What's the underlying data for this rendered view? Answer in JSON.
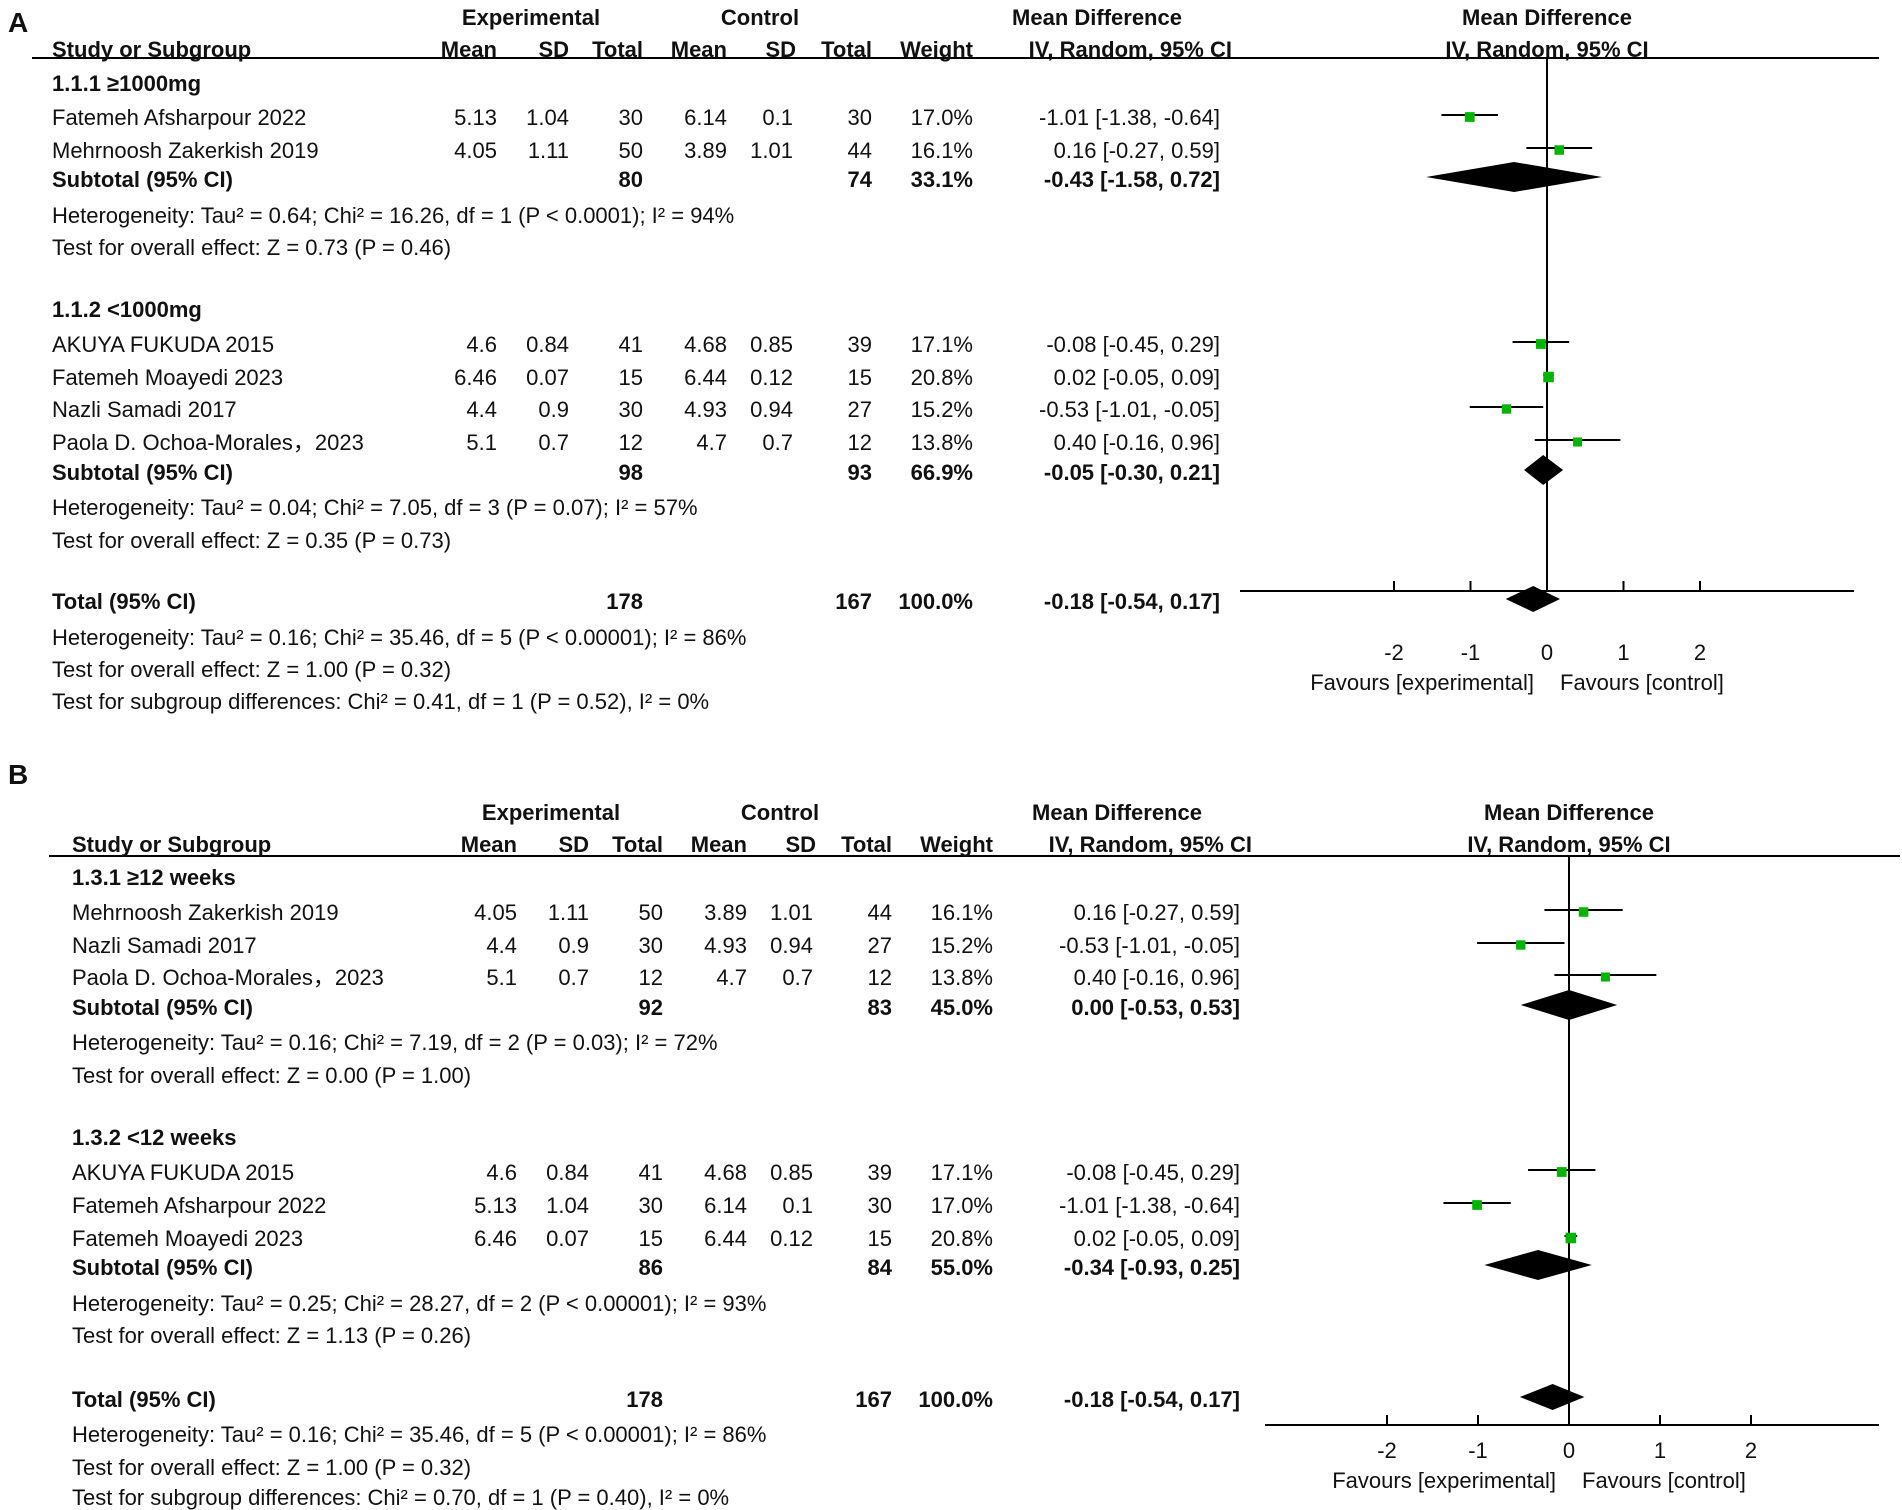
{
  "chart_data": [
    {
      "type": "forest",
      "panel_label": "A",
      "header": {
        "group_exp": "Experimental",
        "group_ctl": "Control",
        "group_md": "Mean Difference",
        "study": "Study or Subgroup",
        "mean": "Mean",
        "sd": "SD",
        "total": "Total",
        "weight": "Weight",
        "method": "IV, Random, 95% CI",
        "plot_title": "Mean Difference",
        "plot_method": "IV, Random, 95% CI"
      },
      "rows": [
        {
          "type": "subgroup",
          "text": "1.1.1 ≥1000mg"
        },
        {
          "type": "study",
          "name": "Fatemeh Afsharpour 2022",
          "exp_mean": "5.13",
          "exp_sd": "1.04",
          "exp_total": "30",
          "ctl_mean": "6.14",
          "ctl_sd": "0.1",
          "ctl_total": "30",
          "weight": "17.0%",
          "ci_text": "-1.01 [-1.38, -0.64]",
          "md": -1.01,
          "lo": -1.38,
          "hi": -0.64
        },
        {
          "type": "study",
          "name": "Mehrnoosh Zakerkish 2019",
          "exp_mean": "4.05",
          "exp_sd": "1.11",
          "exp_total": "50",
          "ctl_mean": "3.89",
          "ctl_sd": "1.01",
          "ctl_total": "44",
          "weight": "16.1%",
          "ci_text": "0.16 [-0.27, 0.59]",
          "md": 0.16,
          "lo": -0.27,
          "hi": 0.59
        },
        {
          "type": "subtotal",
          "name": "Subtotal (95% CI)",
          "exp_total": "80",
          "ctl_total": "74",
          "weight": "33.1%",
          "ci_text": "-0.43 [-1.58, 0.72]",
          "md": -0.43,
          "lo": -1.58,
          "hi": 0.72
        },
        {
          "type": "note",
          "text": "Heterogeneity: Tau² = 0.64; Chi² = 16.26, df = 1 (P < 0.0001); I² = 94%"
        },
        {
          "type": "note",
          "text": "Test for overall effect: Z = 0.73 (P = 0.46)"
        },
        {
          "type": "subgroup",
          "text": "1.1.2 <1000mg"
        },
        {
          "type": "study",
          "name": "AKUYA FUKUDA 2015",
          "exp_mean": "4.6",
          "exp_sd": "0.84",
          "exp_total": "41",
          "ctl_mean": "4.68",
          "ctl_sd": "0.85",
          "ctl_total": "39",
          "weight": "17.1%",
          "ci_text": "-0.08 [-0.45, 0.29]",
          "md": -0.08,
          "lo": -0.45,
          "hi": 0.29
        },
        {
          "type": "study",
          "name": "Fatemeh Moayedi 2023",
          "exp_mean": "6.46",
          "exp_sd": "0.07",
          "exp_total": "15",
          "ctl_mean": "6.44",
          "ctl_sd": "0.12",
          "ctl_total": "15",
          "weight": "20.8%",
          "ci_text": "0.02 [-0.05, 0.09]",
          "md": 0.02,
          "lo": -0.05,
          "hi": 0.09
        },
        {
          "type": "study",
          "name": "Nazli Samadi 2017",
          "exp_mean": "4.4",
          "exp_sd": "0.9",
          "exp_total": "30",
          "ctl_mean": "4.93",
          "ctl_sd": "0.94",
          "ctl_total": "27",
          "weight": "15.2%",
          "ci_text": "-0.53 [-1.01, -0.05]",
          "md": -0.53,
          "lo": -1.01,
          "hi": -0.05
        },
        {
          "type": "study",
          "name": "Paola D. Ochoa-Morales，2023",
          "exp_mean": "5.1",
          "exp_sd": "0.7",
          "exp_total": "12",
          "ctl_mean": "4.7",
          "ctl_sd": "0.7",
          "ctl_total": "12",
          "weight": "13.8%",
          "ci_text": "0.40 [-0.16, 0.96]",
          "md": 0.4,
          "lo": -0.16,
          "hi": 0.96
        },
        {
          "type": "subtotal",
          "name": "Subtotal (95% CI)",
          "exp_total": "98",
          "ctl_total": "93",
          "weight": "66.9%",
          "ci_text": "-0.05 [-0.30, 0.21]",
          "md": -0.05,
          "lo": -0.3,
          "hi": 0.21
        },
        {
          "type": "note",
          "text": "Heterogeneity: Tau² = 0.04; Chi² = 7.05, df = 3 (P = 0.07); I² = 57%"
        },
        {
          "type": "note",
          "text": "Test for overall effect: Z = 0.35 (P = 0.73)"
        },
        {
          "type": "subtotal",
          "name": "Total (95% CI)",
          "exp_total": "178",
          "ctl_total": "167",
          "weight": "100.0%",
          "ci_text": "-0.18 [-0.54, 0.17]",
          "md": -0.18,
          "lo": -0.54,
          "hi": 0.17
        },
        {
          "type": "note",
          "text": "Heterogeneity: Tau² = 0.16; Chi² = 35.46, df = 5 (P < 0.00001); I² = 86%"
        },
        {
          "type": "note",
          "text": "Test for overall effect: Z = 1.00 (P = 0.32)"
        },
        {
          "type": "note",
          "text": "Test for subgroup differences: Chi² = 0.41, df = 1 (P = 0.52), I² = 0%"
        }
      ],
      "axis": {
        "ticks": [
          "-2",
          "-1",
          "0",
          "1",
          "2"
        ],
        "favours_left": "Favours [experimental]",
        "favours_right": "Favours [control]"
      }
    },
    {
      "type": "forest",
      "panel_label": "B",
      "header": {
        "group_exp": "Experimental",
        "group_ctl": "Control",
        "group_md": "Mean Difference",
        "study": "Study or Subgroup",
        "mean": "Mean",
        "sd": "SD",
        "total": "Total",
        "weight": "Weight",
        "method": "IV, Random, 95% CI",
        "plot_title": "Mean Difference",
        "plot_method": "IV, Random, 95% CI"
      },
      "rows": [
        {
          "type": "subgroup",
          "text": "1.3.1 ≥12 weeks"
        },
        {
          "type": "study",
          "name": "Mehrnoosh Zakerkish 2019",
          "exp_mean": "4.05",
          "exp_sd": "1.11",
          "exp_total": "50",
          "ctl_mean": "3.89",
          "ctl_sd": "1.01",
          "ctl_total": "44",
          "weight": "16.1%",
          "ci_text": "0.16 [-0.27, 0.59]",
          "md": 0.16,
          "lo": -0.27,
          "hi": 0.59
        },
        {
          "type": "study",
          "name": "Nazli Samadi 2017",
          "exp_mean": "4.4",
          "exp_sd": "0.9",
          "exp_total": "30",
          "ctl_mean": "4.93",
          "ctl_sd": "0.94",
          "ctl_total": "27",
          "weight": "15.2%",
          "ci_text": "-0.53 [-1.01, -0.05]",
          "md": -0.53,
          "lo": -1.01,
          "hi": -0.05
        },
        {
          "type": "study",
          "name": "Paola D. Ochoa-Morales，2023",
          "exp_mean": "5.1",
          "exp_sd": "0.7",
          "exp_total": "12",
          "ctl_mean": "4.7",
          "ctl_sd": "0.7",
          "ctl_total": "12",
          "weight": "13.8%",
          "ci_text": "0.40 [-0.16, 0.96]",
          "md": 0.4,
          "lo": -0.16,
          "hi": 0.96
        },
        {
          "type": "subtotal",
          "name": "Subtotal (95% CI)",
          "exp_total": "92",
          "ctl_total": "83",
          "weight": "45.0%",
          "ci_text": "0.00 [-0.53, 0.53]",
          "md": 0.0,
          "lo": -0.53,
          "hi": 0.53
        },
        {
          "type": "note",
          "text": "Heterogeneity: Tau² = 0.16; Chi² = 7.19, df = 2 (P = 0.03); I² = 72%"
        },
        {
          "type": "note",
          "text": "Test for overall effect: Z = 0.00 (P = 1.00)"
        },
        {
          "type": "subgroup",
          "text": "1.3.2 <12 weeks"
        },
        {
          "type": "study",
          "name": "AKUYA FUKUDA 2015",
          "exp_mean": "4.6",
          "exp_sd": "0.84",
          "exp_total": "41",
          "ctl_mean": "4.68",
          "ctl_sd": "0.85",
          "ctl_total": "39",
          "weight": "17.1%",
          "ci_text": "-0.08 [-0.45, 0.29]",
          "md": -0.08,
          "lo": -0.45,
          "hi": 0.29
        },
        {
          "type": "study",
          "name": "Fatemeh Afsharpour 2022",
          "exp_mean": "5.13",
          "exp_sd": "1.04",
          "exp_total": "30",
          "ctl_mean": "6.14",
          "ctl_sd": "0.1",
          "ctl_total": "30",
          "weight": "17.0%",
          "ci_text": "-1.01 [-1.38, -0.64]",
          "md": -1.01,
          "lo": -1.38,
          "hi": -0.64
        },
        {
          "type": "study",
          "name": "Fatemeh Moayedi 2023",
          "exp_mean": "6.46",
          "exp_sd": "0.07",
          "exp_total": "15",
          "ctl_mean": "6.44",
          "ctl_sd": "0.12",
          "ctl_total": "15",
          "weight": "20.8%",
          "ci_text": "0.02 [-0.05, 0.09]",
          "md": 0.02,
          "lo": -0.05,
          "hi": 0.09
        },
        {
          "type": "subtotal",
          "name": "Subtotal (95% CI)",
          "exp_total": "86",
          "ctl_total": "84",
          "weight": "55.0%",
          "ci_text": "-0.34 [-0.93, 0.25]",
          "md": -0.34,
          "lo": -0.93,
          "hi": 0.25
        },
        {
          "type": "note",
          "text": "Heterogeneity: Tau² = 0.25; Chi² = 28.27, df = 2 (P < 0.00001); I² = 93%"
        },
        {
          "type": "note",
          "text": "Test for overall effect: Z = 1.13 (P = 0.26)"
        },
        {
          "type": "subtotal",
          "name": "Total (95% CI)",
          "exp_total": "178",
          "ctl_total": "167",
          "weight": "100.0%",
          "ci_text": "-0.18 [-0.54, 0.17]",
          "md": -0.18,
          "lo": -0.54,
          "hi": 0.17
        },
        {
          "type": "note",
          "text": "Heterogeneity: Tau² = 0.16; Chi² = 35.46, df = 5 (P < 0.00001); I² = 86%"
        },
        {
          "type": "note",
          "text": "Test for overall effect: Z = 1.00 (P = 0.32)"
        },
        {
          "type": "note",
          "text": "Test for subgroup differences: Chi² = 0.70, df = 1 (P = 0.40), I² = 0%"
        }
      ],
      "axis": {
        "ticks": [
          "-2",
          "-1",
          "0",
          "1",
          "2"
        ],
        "favours_left": "Favours [experimental]",
        "favours_right": "Favours [control]"
      }
    }
  ],
  "colors": {
    "study_marker": "#00b400",
    "ink": "#000000"
  }
}
